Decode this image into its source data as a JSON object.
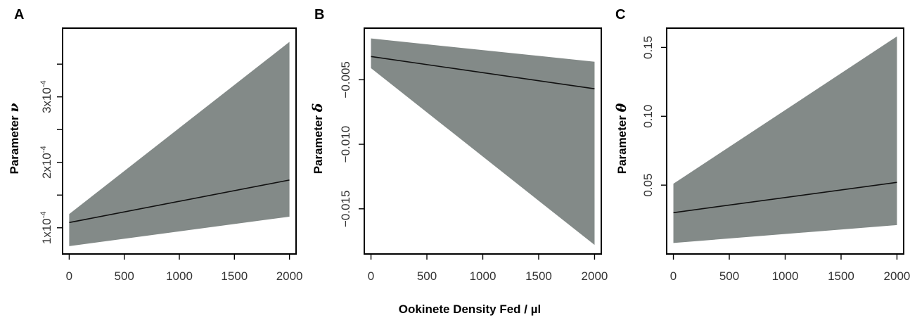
{
  "xlabel": "Ookinete Density Fed / µl",
  "colors": {
    "band": "#838a88",
    "line": "#111111",
    "frame": "#000000"
  },
  "chart_data": [
    {
      "type": "line",
      "panel": "A",
      "ylabel_text": "Parameter",
      "ylabel_symbol": "ν",
      "x_ticks": [
        0,
        500,
        1000,
        1500,
        2000
      ],
      "x_tick_labels": [
        "0",
        "500",
        "1000",
        "1500",
        "2000"
      ],
      "y_ticks": [
        0.0001,
        0.0002,
        0.0003
      ],
      "y_tick_labels": [
        {
          "base": "1x10",
          "exp": "-4"
        },
        {
          "base": "2x10",
          "exp": "-4"
        },
        {
          "base": "3x10",
          "exp": "-4"
        }
      ],
      "xlim": [
        -60,
        2060
      ],
      "ylim": [
        6e-05,
        0.000405
      ],
      "series": [
        {
          "x": [
            0,
            2000
          ],
          "estimate": [
            0.000108,
            0.000173
          ],
          "lower": [
            7.2e-05,
            0.000117
          ],
          "upper": [
            0.000121,
            0.000384
          ]
        }
      ]
    },
    {
      "type": "line",
      "panel": "B",
      "ylabel_text": "Parameter",
      "ylabel_symbol": "δ",
      "x_ticks": [
        0,
        500,
        1000,
        1500,
        2000
      ],
      "x_tick_labels": [
        "0",
        "500",
        "1000",
        "1500",
        "2000"
      ],
      "y_ticks": [
        -0.005,
        -0.01,
        -0.015
      ],
      "y_tick_labels": [
        "−0.005",
        "−0.010",
        "−0.015"
      ],
      "xlim": [
        -60,
        2060
      ],
      "ylim": [
        -0.0185,
        -0.001
      ],
      "series": [
        {
          "x": [
            0,
            2000
          ],
          "estimate": [
            -0.0032,
            -0.0057
          ],
          "lower": [
            -0.0041,
            -0.0178
          ],
          "upper": [
            -0.0018,
            -0.0036
          ]
        }
      ]
    },
    {
      "type": "line",
      "panel": "C",
      "ylabel_text": "Parameter",
      "ylabel_symbol": "θ",
      "x_ticks": [
        0,
        500,
        1000,
        1500,
        2000
      ],
      "x_tick_labels": [
        "0",
        "500",
        "1000",
        "1500",
        "2000"
      ],
      "y_ticks": [
        0.05,
        0.1,
        0.15
      ],
      "y_tick_labels": [
        "0.05",
        "0.10",
        "0.15"
      ],
      "xlim": [
        -60,
        2060
      ],
      "ylim": [
        0.0,
        0.164
      ],
      "series": [
        {
          "x": [
            0,
            2000
          ],
          "estimate": [
            0.03,
            0.052
          ],
          "lower": [
            0.008,
            0.021
          ],
          "upper": [
            0.051,
            0.158
          ]
        }
      ]
    }
  ]
}
